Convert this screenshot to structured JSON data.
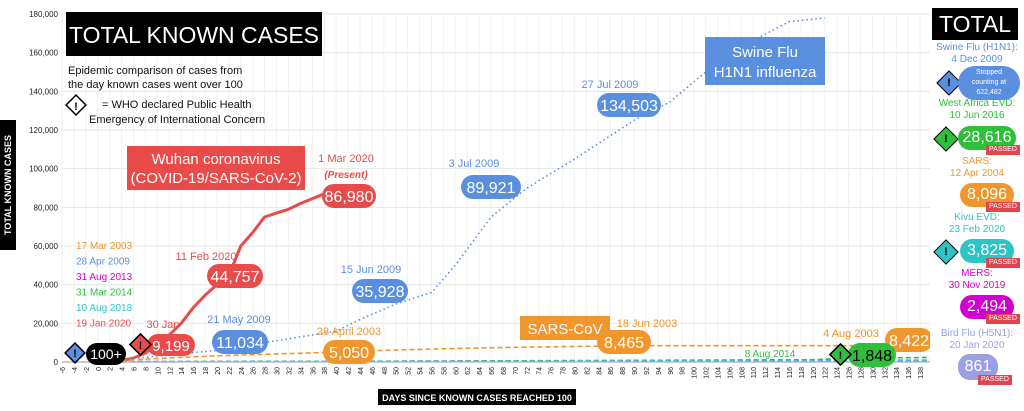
{
  "chart_data": {
    "type": "line",
    "title": "TOTAL KNOWN CASES",
    "description_line1": "Epidemic comparison of cases from",
    "description_line2": "the day known cases went over 100",
    "legend_diamond_symbol": "!",
    "legend_text_line1": "= WHO declared Public Health",
    "legend_text_line2": "Emergency of International Concern",
    "xlabel": "DAYS SINCE KNOWN CASES REACHED 100",
    "ylabel": "TOTAL KNOWN CASES",
    "xlim": [
      -6,
      140
    ],
    "ylim": [
      0,
      180000
    ],
    "yticks": [
      "0",
      "20,000",
      "40,000",
      "60,000",
      "80,000",
      "100,000",
      "120,000",
      "140,000",
      "160,000",
      "180,000"
    ],
    "xticks": [
      -6,
      -4,
      -2,
      0,
      2,
      4,
      6,
      8,
      10,
      12,
      14,
      16,
      18,
      20,
      22,
      24,
      26,
      28,
      30,
      32,
      34,
      36,
      38,
      40,
      42,
      44,
      46,
      48,
      50,
      52,
      54,
      56,
      58,
      60,
      62,
      64,
      66,
      68,
      70,
      72,
      74,
      76,
      78,
      80,
      82,
      84,
      86,
      88,
      90,
      92,
      94,
      96,
      98,
      100,
      102,
      104,
      106,
      108,
      110,
      112,
      114,
      116,
      118,
      120,
      122,
      124,
      126,
      128,
      130,
      132,
      134,
      136,
      138,
      140
    ],
    "series": [
      {
        "name": "Wuhan coronavirus (COVID-19/SARS-CoV-2)",
        "color": "#e94b4b",
        "style": "solid",
        "points": [
          [
            0,
            100
          ],
          [
            2,
            250
          ],
          [
            4,
            800
          ],
          [
            6,
            2000
          ],
          [
            8,
            4600
          ],
          [
            10,
            9199
          ],
          [
            12,
            14000
          ],
          [
            14,
            20000
          ],
          [
            16,
            28000
          ],
          [
            18,
            34500
          ],
          [
            20,
            40000
          ],
          [
            22,
            44757
          ],
          [
            24,
            60000
          ],
          [
            26,
            67000
          ],
          [
            28,
            75000
          ],
          [
            30,
            77000
          ],
          [
            32,
            79000
          ],
          [
            34,
            82000
          ],
          [
            36,
            84500
          ],
          [
            38,
            86980
          ]
        ]
      },
      {
        "name": "Swine Flu H1N1 influenza",
        "color": "#5a8fe0",
        "style": "dotted",
        "points": [
          [
            0,
            100
          ],
          [
            10,
            3000
          ],
          [
            20,
            6000
          ],
          [
            30,
            11034
          ],
          [
            40,
            16000
          ],
          [
            44,
            22000
          ],
          [
            50,
            30000
          ],
          [
            56,
            35928
          ],
          [
            60,
            50000
          ],
          [
            66,
            75000
          ],
          [
            72,
            89921
          ],
          [
            80,
            105000
          ],
          [
            90,
            125000
          ],
          [
            96,
            134503
          ],
          [
            102,
            150000
          ],
          [
            108,
            163000
          ],
          [
            116,
            176000
          ],
          [
            122,
            178000
          ]
        ]
      },
      {
        "name": "SARS-CoV",
        "color": "#f0962d",
        "style": "dashed",
        "points": [
          [
            0,
            100
          ],
          [
            10,
            1800
          ],
          [
            20,
            3200
          ],
          [
            30,
            4200
          ],
          [
            40,
            5050
          ],
          [
            50,
            6200
          ],
          [
            60,
            7000
          ],
          [
            70,
            7600
          ],
          [
            80,
            8000
          ],
          [
            90,
            8465
          ],
          [
            100,
            8420
          ],
          [
            110,
            8421
          ],
          [
            120,
            8422
          ],
          [
            140,
            8422
          ]
        ]
      },
      {
        "name": "MERS",
        "color": "#d000d0",
        "style": "dashed",
        "points": [
          [
            0,
            100
          ],
          [
            40,
            300
          ],
          [
            80,
            600
          ],
          [
            140,
            900
          ]
        ]
      },
      {
        "name": "West Africa EVD",
        "color": "#2fbf3a",
        "style": "dashed",
        "points": [
          [
            0,
            100
          ],
          [
            60,
            500
          ],
          [
            120,
            1200
          ],
          [
            126,
            1848
          ],
          [
            140,
            2400
          ]
        ]
      },
      {
        "name": "Kivu EVD",
        "color": "#2cc4c4",
        "style": "dashed",
        "points": [
          [
            0,
            100
          ],
          [
            70,
            400
          ],
          [
            140,
            800
          ]
        ]
      },
      {
        "name": "Bird Flu (H5N1)",
        "color": "#9aa0e6",
        "style": "dashed",
        "points": [
          [
            0,
            100
          ],
          [
            140,
            300
          ]
        ]
      }
    ],
    "start_dates": [
      {
        "text": "17 Mar 2003",
        "color": "#f0962d"
      },
      {
        "text": "28 Apr 2009",
        "color": "#5a8fe0"
      },
      {
        "text": "31 Aug 2013",
        "color": "#d000d0"
      },
      {
        "text": "31 Mar 2014",
        "color": "#2fbf3a"
      },
      {
        "text": "10 Aug 2018",
        "color": "#2cc4c4"
      },
      {
        "text": "19 Jan 2020",
        "color": "#e94b4b"
      }
    ],
    "annotations": {
      "covid_title_1": "Wuhan coronavirus",
      "covid_title_2": "(COVID-19/SARS-CoV-2)",
      "covid_date_latest": "1 Mar 2020",
      "covid_present": "(Present)",
      "covid_latest_value": "86,980",
      "covid_date_2": "11 Feb 2020",
      "covid_value_2": "44,757",
      "covid_date_1": "30 Jan",
      "covid_value_1": "9,199",
      "start_value": "100+",
      "h1n1_title_1": "Swine Flu",
      "h1n1_title_2": "H1N1 influenza",
      "h1n1_date_1": "21 May 2009",
      "h1n1_value_1": "11,034",
      "h1n1_date_2": "15 Jun 2009",
      "h1n1_value_2": "35,928",
      "h1n1_date_3": "3 Jul 2009",
      "h1n1_value_3": "89,921",
      "h1n1_date_4": "27 Jul 2009",
      "h1n1_value_4": "134,503",
      "sars_title": "SARS-CoV",
      "sars_date_1": "28 April 2003",
      "sars_value_1": "5,050",
      "sars_date_2": "18 Jun 2003",
      "sars_value_2": "8,465",
      "sars_date_3": "4 Aug 2003",
      "sars_value_3": "8,422",
      "evd_date": "8 Aug 2014",
      "evd_value": "1,848"
    }
  },
  "sidebar": {
    "title": "TOTAL",
    "passed_label": "PASSED",
    "entries": [
      {
        "name": "Swine Flu (H1N1):",
        "date": "4 Dec 2009",
        "value_line1": "Stopped",
        "value_line2": "counting at",
        "value_line3": "622,482",
        "color": "#5a8fe0"
      },
      {
        "name": "West Africa EVD:",
        "date": "10 Jun 2016",
        "value": "28,616",
        "color": "#2fbf3a"
      },
      {
        "name": "SARS:",
        "date": "12 Apr 2004",
        "value": "8,096",
        "color": "#f0962d"
      },
      {
        "name": "Kivu EVD:",
        "date": "23 Feb 2020",
        "value": "3,825",
        "color": "#2cc4c4"
      },
      {
        "name": "MERS:",
        "date": "30 Nov 2019",
        "value": "2,494",
        "color": "#d000d0"
      },
      {
        "name": "Bird Flu (H5N1):",
        "date": "20 Jan 2020",
        "value": "861",
        "color": "#9aa0e6"
      }
    ]
  }
}
